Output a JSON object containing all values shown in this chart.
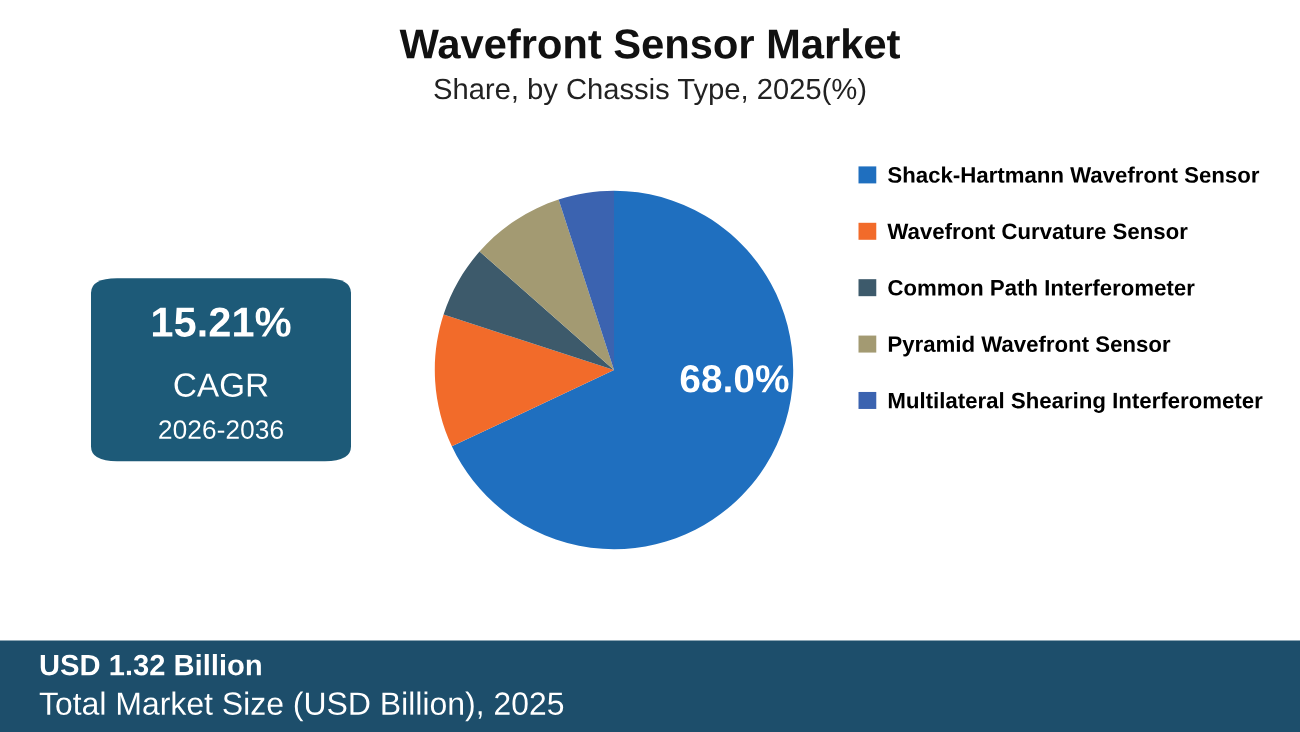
{
  "chart_data": {
    "type": "pie",
    "title": "Wavefront Sensor Market",
    "subtitle": "Share, by Chassis Type, 2025(%)",
    "categories": [
      "Shack-Hartmann Wavefront Sensor",
      "Wavefront Curvature Sensor",
      "Common Path Interferometer",
      "Pyramid Wavefront Sensor",
      "Multilateral Shearing Interferometer"
    ],
    "values": [
      68.0,
      12.0,
      6.5,
      8.5,
      5.0
    ],
    "colors": [
      "#1f6fbf",
      "#f26b2a",
      "#3d5a6b",
      "#a39a72",
      "#3b63b0"
    ],
    "value_labels": [
      "68.0%",
      null,
      null,
      null,
      null
    ],
    "legend": "right",
    "annotations": [
      "15.21%",
      "CAGR",
      "2026-2036",
      "USD 1.32 Billion",
      "Total Market Size (USD Billion), 2025"
    ]
  }
}
